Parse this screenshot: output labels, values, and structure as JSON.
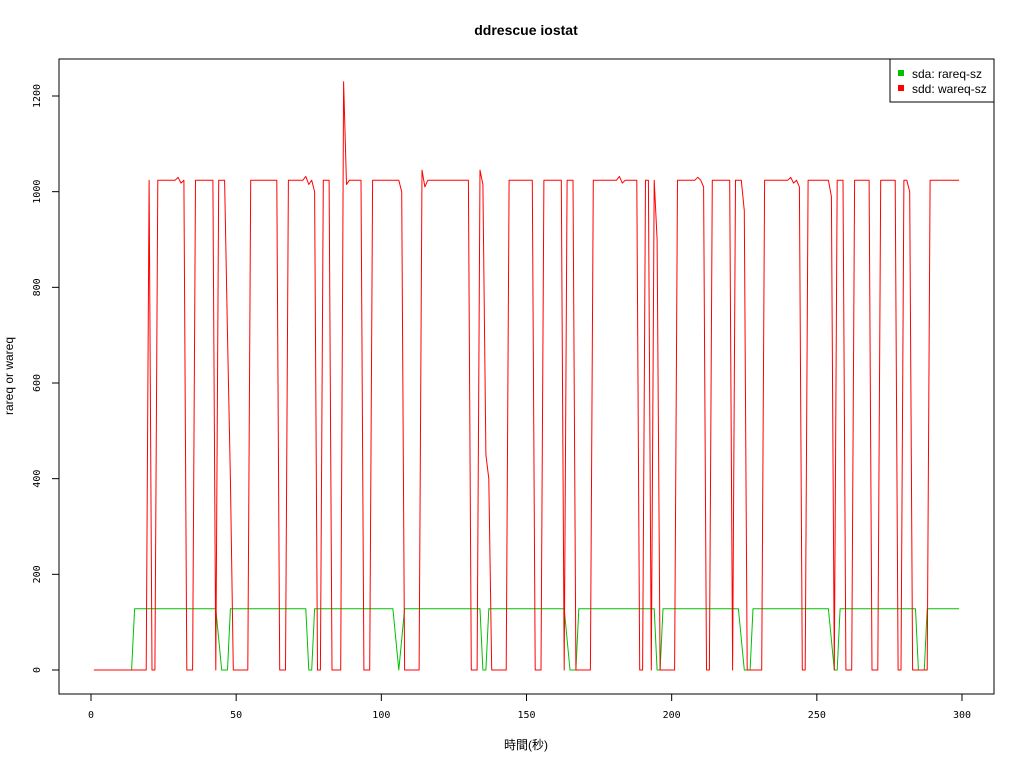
{
  "chart_data": {
    "type": "line",
    "title": "ddrescue iostat",
    "xlabel": "時間(秒)",
    "ylabel": "rareq or wareq",
    "xlim": [
      0,
      300
    ],
    "ylim": [
      0,
      1250
    ],
    "x_ticks": [
      "0",
      "50",
      "100",
      "150",
      "200",
      "250",
      "300"
    ],
    "y_ticks": [
      "0",
      "200",
      "400",
      "600",
      "800",
      "1000",
      "1200"
    ],
    "grid": false,
    "legend_position": "top-right",
    "series": [
      {
        "name": "sda: rareq-sz",
        "color": "#00c000",
        "points": [
          [
            1,
            0
          ],
          [
            14,
            0
          ],
          [
            15,
            128
          ],
          [
            43,
            128
          ],
          [
            45,
            0
          ],
          [
            47,
            0
          ],
          [
            48,
            128
          ],
          [
            74,
            128
          ],
          [
            75,
            0
          ],
          [
            76,
            0
          ],
          [
            77,
            128
          ],
          [
            104,
            128
          ],
          [
            106,
            0
          ],
          [
            108,
            128
          ],
          [
            134,
            128
          ],
          [
            135,
            0
          ],
          [
            136,
            0
          ],
          [
            137,
            128
          ],
          [
            163,
            128
          ],
          [
            165,
            0
          ],
          [
            167,
            0
          ],
          [
            168,
            128
          ],
          [
            194,
            128
          ],
          [
            195,
            0
          ],
          [
            196,
            0
          ],
          [
            197,
            128
          ],
          [
            223,
            128
          ],
          [
            225,
            0
          ],
          [
            227,
            0
          ],
          [
            228,
            128
          ],
          [
            254,
            128
          ],
          [
            256,
            0
          ],
          [
            257,
            0
          ],
          [
            258,
            128
          ],
          [
            284,
            128
          ],
          [
            285,
            0
          ],
          [
            287,
            0
          ],
          [
            288,
            128
          ],
          [
            299,
            128
          ]
        ]
      },
      {
        "name": "sdd: wareq-sz",
        "color": "#ff0000",
        "points": [
          [
            1,
            0
          ],
          [
            19,
            0
          ],
          [
            20,
            1024
          ],
          [
            21,
            0
          ],
          [
            22,
            0
          ],
          [
            23,
            1024
          ],
          [
            29,
            1024
          ],
          [
            30,
            1030
          ],
          [
            31,
            1018
          ],
          [
            32,
            1024
          ],
          [
            33,
            0
          ],
          [
            35,
            0
          ],
          [
            36,
            1024
          ],
          [
            42,
            1024
          ],
          [
            43,
            0
          ],
          [
            44,
            1024
          ],
          [
            46,
            1024
          ],
          [
            47,
            700
          ],
          [
            48,
            400
          ],
          [
            49,
            0
          ],
          [
            54,
            0
          ],
          [
            55,
            1024
          ],
          [
            64,
            1024
          ],
          [
            65,
            0
          ],
          [
            67,
            0
          ],
          [
            68,
            1024
          ],
          [
            73,
            1024
          ],
          [
            74,
            1032
          ],
          [
            75,
            1015
          ],
          [
            76,
            1024
          ],
          [
            77,
            1000
          ],
          [
            78,
            0
          ],
          [
            79,
            0
          ],
          [
            80,
            1024
          ],
          [
            82,
            1024
          ],
          [
            83,
            0
          ],
          [
            86,
            0
          ],
          [
            87,
            1230
          ],
          [
            88,
            1015
          ],
          [
            89,
            1024
          ],
          [
            93,
            1024
          ],
          [
            94,
            0
          ],
          [
            96,
            0
          ],
          [
            97,
            1024
          ],
          [
            106,
            1024
          ],
          [
            107,
            1000
          ],
          [
            108,
            0
          ],
          [
            113,
            0
          ],
          [
            114,
            1045
          ],
          [
            115,
            1010
          ],
          [
            116,
            1024
          ],
          [
            130,
            1024
          ],
          [
            131,
            0
          ],
          [
            133,
            0
          ],
          [
            134,
            1045
          ],
          [
            135,
            1015
          ],
          [
            136,
            450
          ],
          [
            137,
            400
          ],
          [
            138,
            0
          ],
          [
            143,
            0
          ],
          [
            144,
            1024
          ],
          [
            152,
            1024
          ],
          [
            153,
            0
          ],
          [
            155,
            0
          ],
          [
            156,
            1024
          ],
          [
            162,
            1024
          ],
          [
            163,
            0
          ],
          [
            164,
            1024
          ],
          [
            166,
            1024
          ],
          [
            167,
            0
          ],
          [
            172,
            0
          ],
          [
            173,
            1024
          ],
          [
            181,
            1024
          ],
          [
            182,
            1032
          ],
          [
            183,
            1018
          ],
          [
            184,
            1024
          ],
          [
            188,
            1024
          ],
          [
            189,
            0
          ],
          [
            190,
            0
          ],
          [
            191,
            1024
          ],
          [
            192,
            1024
          ],
          [
            193,
            0
          ],
          [
            194,
            1024
          ],
          [
            195,
            900
          ],
          [
            196,
            0
          ],
          [
            201,
            0
          ],
          [
            202,
            1024
          ],
          [
            208,
            1024
          ],
          [
            209,
            1030
          ],
          [
            210,
            1024
          ],
          [
            211,
            1010
          ],
          [
            212,
            0
          ],
          [
            213,
            0
          ],
          [
            214,
            1024
          ],
          [
            220,
            1024
          ],
          [
            221,
            0
          ],
          [
            222,
            1024
          ],
          [
            224,
            1024
          ],
          [
            225,
            960
          ],
          [
            226,
            0
          ],
          [
            231,
            0
          ],
          [
            232,
            1024
          ],
          [
            240,
            1024
          ],
          [
            241,
            1030
          ],
          [
            242,
            1018
          ],
          [
            243,
            1024
          ],
          [
            244,
            1010
          ],
          [
            245,
            0
          ],
          [
            246,
            0
          ],
          [
            247,
            1024
          ],
          [
            254,
            1024
          ],
          [
            255,
            990
          ],
          [
            256,
            0
          ],
          [
            257,
            1024
          ],
          [
            259,
            1024
          ],
          [
            260,
            0
          ],
          [
            262,
            0
          ],
          [
            263,
            1024
          ],
          [
            268,
            1024
          ],
          [
            269,
            0
          ],
          [
            271,
            0
          ],
          [
            272,
            1024
          ],
          [
            277,
            1024
          ],
          [
            278,
            0
          ],
          [
            279,
            0
          ],
          [
            280,
            1024
          ],
          [
            281,
            1024
          ],
          [
            282,
            1000
          ],
          [
            283,
            0
          ],
          [
            288,
            0
          ],
          [
            289,
            1024
          ],
          [
            299,
            1024
          ]
        ]
      }
    ]
  }
}
